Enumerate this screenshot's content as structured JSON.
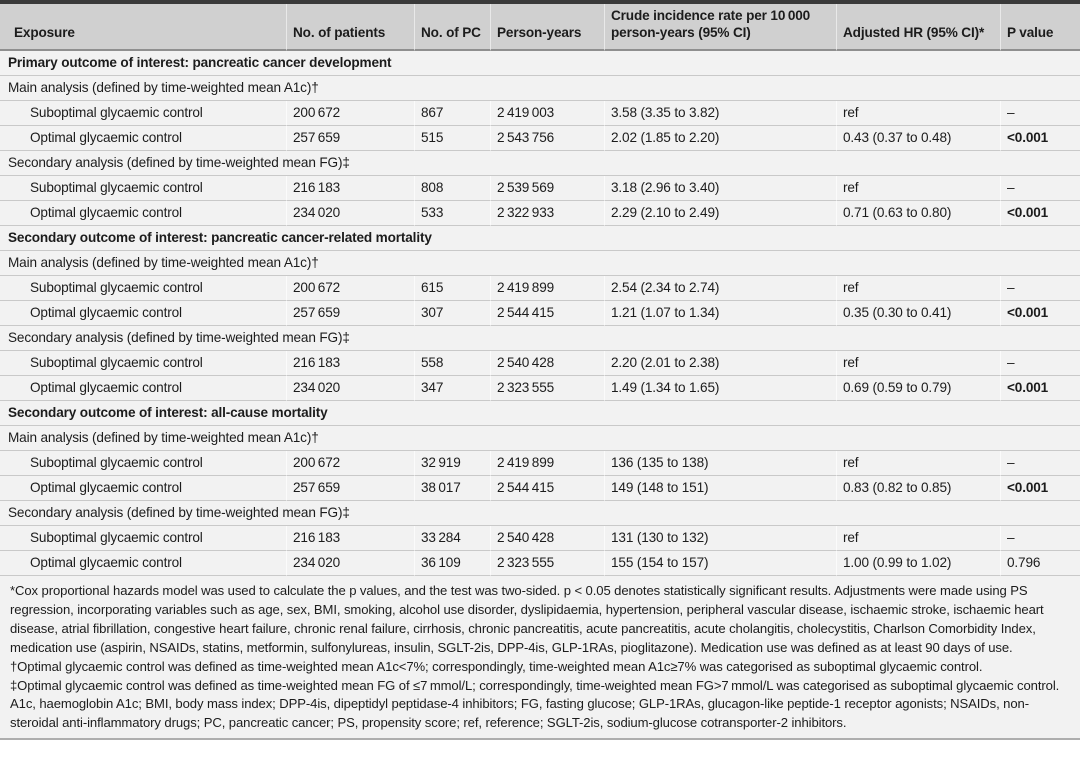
{
  "colors": {
    "header_bg": "#d0d0d0",
    "row_bg": "#f2f2f2",
    "top_border": "#3a3a3a",
    "header_rule": "#8f8f8f",
    "row_rule": "#c9c9c9",
    "bottom_rule": "#aeaeae",
    "text": "#1c1c1c"
  },
  "table": {
    "header": {
      "exposure": "Exposure",
      "patients": "No. of patients",
      "pc": "No. of PC",
      "py": "Person-years",
      "crude_line1": "Crude incidence rate per 10 000",
      "crude_line2": "person-years (95% CI)",
      "hr": "Adjusted HR (95% CI)*",
      "p": "P value"
    },
    "rows": [
      {
        "type": "section",
        "label": "Primary outcome of interest: pancreatic cancer development"
      },
      {
        "type": "subsection",
        "label": "Main analysis (defined by time-weighted mean A1c)†"
      },
      {
        "type": "data",
        "exposure": "Suboptimal glycaemic control",
        "patients": "200 672",
        "pc": "867",
        "py": "2 419 003",
        "crude": "3.58 (3.35 to 3.82)",
        "hr": "ref",
        "p": "–",
        "p_bold": false
      },
      {
        "type": "data",
        "exposure": "Optimal glycaemic control",
        "patients": "257 659",
        "pc": "515",
        "py": "2 543 756",
        "crude": "2.02 (1.85 to 2.20)",
        "hr": "0.43 (0.37 to 0.48)",
        "p": "<0.001",
        "p_bold": true
      },
      {
        "type": "subsection",
        "label": "Secondary analysis (defined by time-weighted mean FG)‡"
      },
      {
        "type": "data",
        "exposure": "Suboptimal glycaemic control",
        "patients": "216 183",
        "pc": "808",
        "py": "2 539 569",
        "crude": "3.18 (2.96 to 3.40)",
        "hr": "ref",
        "p": "–",
        "p_bold": false
      },
      {
        "type": "data",
        "exposure": "Optimal glycaemic control",
        "patients": "234 020",
        "pc": "533",
        "py": "2 322 933",
        "crude": "2.29 (2.10 to 2.49)",
        "hr": "0.71 (0.63 to 0.80)",
        "p": "<0.001",
        "p_bold": true
      },
      {
        "type": "section",
        "label": "Secondary outcome of interest: pancreatic cancer-related mortality"
      },
      {
        "type": "subsection",
        "label": "Main analysis (defined by time-weighted mean A1c)†"
      },
      {
        "type": "data",
        "exposure": "Suboptimal glycaemic control",
        "patients": "200 672",
        "pc": "615",
        "py": "2 419 899",
        "crude": "2.54 (2.34 to 2.74)",
        "hr": "ref",
        "p": "–",
        "p_bold": false
      },
      {
        "type": "data",
        "exposure": "Optimal glycaemic control",
        "patients": "257 659",
        "pc": "307",
        "py": "2 544 415",
        "crude": "1.21 (1.07 to 1.34)",
        "hr": "0.35 (0.30 to 0.41)",
        "p": "<0.001",
        "p_bold": true
      },
      {
        "type": "subsection",
        "label": "Secondary analysis (defined by time-weighted mean FG)‡"
      },
      {
        "type": "data",
        "exposure": "Suboptimal glycaemic control",
        "patients": "216 183",
        "pc": "558",
        "py": "2 540 428",
        "crude": "2.20 (2.01 to 2.38)",
        "hr": "ref",
        "p": "–",
        "p_bold": false
      },
      {
        "type": "data",
        "exposure": "Optimal glycaemic control",
        "patients": "234 020",
        "pc": "347",
        "py": "2 323 555",
        "crude": "1.49 (1.34 to 1.65)",
        "hr": "0.69 (0.59 to 0.79)",
        "p": "<0.001",
        "p_bold": true
      },
      {
        "type": "section",
        "label": "Secondary outcome of interest: all-cause mortality"
      },
      {
        "type": "subsection",
        "label": "Main analysis (defined by time-weighted mean A1c)†"
      },
      {
        "type": "data",
        "exposure": "Suboptimal glycaemic control",
        "patients": "200 672",
        "pc": "32 919",
        "py": "2 419 899",
        "crude": "136 (135 to 138)",
        "hr": "ref",
        "p": "–",
        "p_bold": false
      },
      {
        "type": "data",
        "exposure": "Optimal glycaemic control",
        "patients": "257 659",
        "pc": "38 017",
        "py": "2 544 415",
        "crude": "149 (148 to 151)",
        "hr": "0.83 (0.82 to 0.85)",
        "p": "<0.001",
        "p_bold": true
      },
      {
        "type": "subsection",
        "label": "Secondary analysis (defined by time-weighted mean FG)‡"
      },
      {
        "type": "data",
        "exposure": "Suboptimal glycaemic control",
        "patients": "216 183",
        "pc": "33 284",
        "py": "2 540 428",
        "crude": "131 (130 to 132)",
        "hr": "ref",
        "p": "–",
        "p_bold": false
      },
      {
        "type": "data",
        "exposure": "Optimal glycaemic control",
        "patients": "234 020",
        "pc": "36 109",
        "py": "2 323 555",
        "crude": "155 (154 to 157)",
        "hr": "1.00 (0.99 to 1.02)",
        "p": "0.796",
        "p_bold": false
      }
    ]
  },
  "footnotes": [
    "*Cox proportional hazards model was used to calculate the p values, and the test was two-sided. p < 0.05 denotes statistically significant results. Adjustments were made using PS regression, incorporating variables such as age, sex, BMI, smoking, alcohol use disorder, dyslipidaemia, hypertension, peripheral vascular disease, ischaemic stroke, ischaemic heart disease, atrial fibrillation, congestive heart failure, chronic renal failure, cirrhosis, chronic pancreatitis, acute pancreatitis, acute cholangitis, cholecystitis, Charlson Comorbidity Index, medication use (aspirin, NSAIDs, statins, metformin, sulfonylureas, insulin, SGLT-2is, DPP-4is, GLP-1RAs, pioglitazone). Medication use was defined as at least 90 days of use.",
    "†Optimal glycaemic control was defined as time-weighted mean A1c<7%; correspondingly, time-weighted mean A1c≥7% was categorised as suboptimal glycaemic control.",
    "‡Optimal glycaemic control was defined as time-weighted mean FG of ≤7 mmol/L; correspondingly, time-weighted mean FG>7 mmol/L was categorised as suboptimal glycaemic control.",
    "A1c, haemoglobin A1c; BMI, body mass index; DPP-4is, dipeptidyl peptidase-4 inhibitors; FG, fasting glucose; GLP-1RAs, glucagon-like peptide-1 receptor agonists; NSAIDs, non-steroidal anti-inflammatory drugs; PC, pancreatic cancer; PS, propensity score; ref, reference; SGLT-2is, sodium-glucose cotransporter-2 inhibitors."
  ]
}
